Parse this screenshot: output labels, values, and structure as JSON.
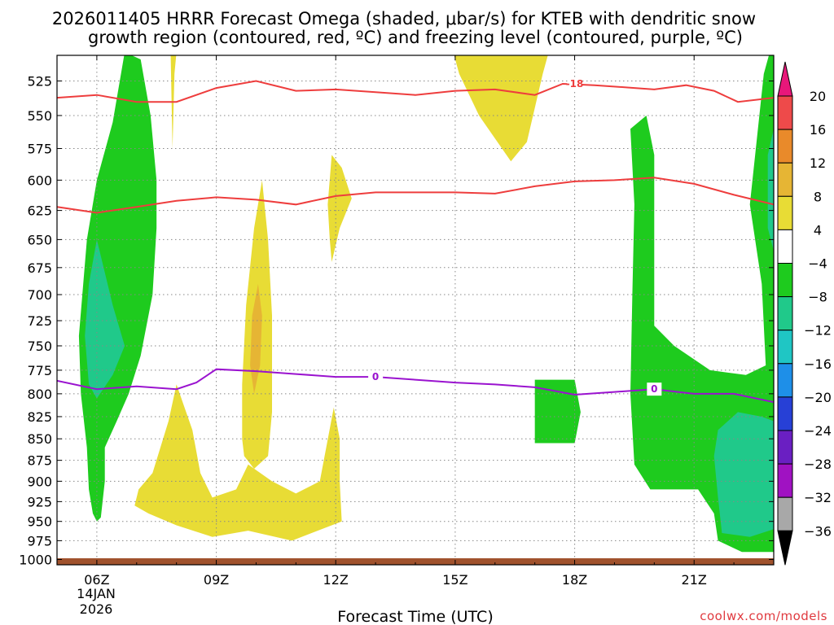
{
  "chart_data": {
    "type": "heatmap",
    "title_line1": "2026011405 HRRR Forecast Omega (shaded, μbar/s) for KTEB with dendritic snow",
    "title_line2": "growth region (contoured, red, ºC) and freezing level (contoured, purple, ºC)",
    "xlabel": "Forecast Time (UTC)",
    "ylabel": "",
    "credit": "coolwx.com/models",
    "x_ticks": [
      {
        "hour": 6,
        "label": "06Z"
      },
      {
        "hour": 9,
        "label": "09Z"
      },
      {
        "hour": 12,
        "label": "12Z"
      },
      {
        "hour": 15,
        "label": "15Z"
      },
      {
        "hour": 18,
        "label": "18Z"
      },
      {
        "hour": 21,
        "label": "21Z"
      }
    ],
    "x_date_lines": [
      "14JAN",
      "2026"
    ],
    "xlim": [
      5,
      23
    ],
    "y_ticks": [
      525,
      550,
      575,
      600,
      625,
      650,
      675,
      700,
      725,
      750,
      775,
      800,
      825,
      850,
      875,
      900,
      925,
      950,
      975,
      1000
    ],
    "y_label_ticks": [
      "525",
      "550",
      "575",
      "600",
      "625",
      "650",
      "675",
      "700",
      "725",
      "750",
      "775",
      "800",
      "825",
      "850",
      "875",
      "900",
      "925",
      "950",
      "975",
      "1000"
    ],
    "ylim": [
      500,
      1005
    ],
    "y_scale": "log-pressure",
    "grid": true,
    "colorbar": {
      "labels": [
        "20",
        "16",
        "12",
        "8",
        "4",
        "−4",
        "−8",
        "−12",
        "−16",
        "−20",
        "−24",
        "−28",
        "−32",
        "−36"
      ],
      "bins": [
        {
          "lo": 20,
          "hi": null,
          "color": "#e8177a"
        },
        {
          "lo": 16,
          "hi": 20,
          "color": "#ee4a4a"
        },
        {
          "lo": 12,
          "hi": 16,
          "color": "#e98a2a"
        },
        {
          "lo": 8,
          "hi": 12,
          "color": "#e6b534"
        },
        {
          "lo": 4,
          "hi": 8,
          "color": "#e8dc35"
        },
        {
          "lo": -4,
          "hi": 4,
          "color": "#ffffff"
        },
        {
          "lo": -8,
          "hi": -4,
          "color": "#1ecb1e"
        },
        {
          "lo": -12,
          "hi": -8,
          "color": "#20c98a"
        },
        {
          "lo": -16,
          "hi": -12,
          "color": "#1fc6c4"
        },
        {
          "lo": -20,
          "hi": -16,
          "color": "#1e8fe8"
        },
        {
          "lo": -24,
          "hi": -20,
          "color": "#2740d6"
        },
        {
          "lo": -28,
          "hi": -24,
          "color": "#6a1fc2"
        },
        {
          "lo": -32,
          "hi": -28,
          "color": "#a012c2"
        },
        {
          "lo": -36,
          "hi": -32,
          "color": "#a8a8a8"
        },
        {
          "lo": null,
          "hi": -36,
          "color": "#000000"
        }
      ]
    },
    "shaded_regions": [
      {
        "value_range": [
          -8,
          -4
        ],
        "color": "#1ecb1e",
        "points": [
          [
            5.9,
            940
          ],
          [
            6.0,
            950
          ],
          [
            6.1,
            945
          ],
          [
            6.2,
            900
          ],
          [
            6.2,
            860
          ],
          [
            6.5,
            830
          ],
          [
            6.8,
            800
          ],
          [
            7.1,
            760
          ],
          [
            7.4,
            700
          ],
          [
            7.5,
            640
          ],
          [
            7.5,
            600
          ],
          [
            7.35,
            550
          ],
          [
            7.1,
            510
          ],
          [
            6.7,
            505
          ],
          [
            6.4,
            555
          ],
          [
            6.0,
            600
          ],
          [
            5.75,
            650
          ],
          [
            5.55,
            740
          ],
          [
            5.6,
            800
          ],
          [
            5.75,
            860
          ],
          [
            5.8,
            910
          ]
        ]
      },
      {
        "value_range": [
          -12,
          -8
        ],
        "color": "#20c98a",
        "points": [
          [
            6.0,
            805
          ],
          [
            6.4,
            780
          ],
          [
            6.7,
            750
          ],
          [
            6.4,
            710
          ],
          [
            6.0,
            650
          ],
          [
            5.8,
            690
          ],
          [
            5.7,
            740
          ],
          [
            5.8,
            790
          ]
        ]
      },
      {
        "value_range": [
          4,
          8
        ],
        "color": "#e8dc35",
        "points": [
          [
            7.9,
            575
          ],
          [
            7.95,
            520
          ],
          [
            8.0,
            505
          ],
          [
            7.95,
            500
          ],
          [
            7.85,
            500
          ]
        ]
      },
      {
        "value_range": [
          4,
          8
        ],
        "color": "#e8dc35",
        "points": [
          [
            9.7,
            870
          ],
          [
            9.95,
            885
          ],
          [
            10.3,
            870
          ],
          [
            10.4,
            820
          ],
          [
            10.4,
            720
          ],
          [
            10.3,
            650
          ],
          [
            10.15,
            600
          ],
          [
            9.95,
            640
          ],
          [
            9.75,
            710
          ],
          [
            9.65,
            790
          ],
          [
            9.65,
            850
          ]
        ]
      },
      {
        "value_range": [
          8,
          12
        ],
        "color": "#e6b534",
        "points": [
          [
            9.95,
            800
          ],
          [
            10.1,
            770
          ],
          [
            10.15,
            720
          ],
          [
            10.05,
            690
          ],
          [
            9.9,
            720
          ],
          [
            9.85,
            770
          ]
        ]
      },
      {
        "value_range": [
          4,
          8
        ],
        "color": "#e8dc35",
        "points": [
          [
            11.9,
            670
          ],
          [
            12.1,
            640
          ],
          [
            12.4,
            615
          ],
          [
            12.15,
            590
          ],
          [
            11.9,
            580
          ],
          [
            11.8,
            620
          ],
          [
            11.85,
            650
          ]
        ]
      },
      {
        "value_range": [
          4,
          8
        ],
        "color": "#e8dc35",
        "points": [
          [
            6.95,
            930
          ],
          [
            7.3,
            940
          ],
          [
            8.0,
            955
          ],
          [
            8.9,
            970
          ],
          [
            9.8,
            962
          ],
          [
            10.9,
            975
          ],
          [
            12.15,
            950
          ],
          [
            12.1,
            900
          ],
          [
            12.1,
            850
          ],
          [
            11.95,
            815
          ],
          [
            11.6,
            900
          ],
          [
            11.0,
            915
          ],
          [
            10.4,
            900
          ],
          [
            9.8,
            880
          ],
          [
            9.5,
            910
          ],
          [
            8.9,
            920
          ],
          [
            8.6,
            890
          ],
          [
            8.4,
            840
          ],
          [
            8.0,
            790
          ],
          [
            7.8,
            830
          ],
          [
            7.4,
            890
          ],
          [
            7.05,
            910
          ]
        ]
      },
      {
        "value_range": [
          4,
          8
        ],
        "color": "#e8dc35",
        "points": [
          [
            14.9,
            500
          ],
          [
            15.1,
            520
          ],
          [
            15.6,
            550
          ],
          [
            16.4,
            585
          ],
          [
            16.8,
            570
          ],
          [
            17.2,
            520
          ],
          [
            17.4,
            500
          ]
        ]
      },
      {
        "value_range": [
          -8,
          -4
        ],
        "color": "#1ecb1e",
        "points": [
          [
            17.0,
            785
          ],
          [
            18.0,
            785
          ],
          [
            18.15,
            820
          ],
          [
            18.0,
            855
          ],
          [
            17.0,
            855
          ]
        ]
      },
      {
        "value_range": [
          -8,
          -4
        ],
        "color": "#1ecb1e",
        "points": [
          [
            19.4,
            560
          ],
          [
            19.8,
            550
          ],
          [
            20.0,
            580
          ],
          [
            20.0,
            660
          ],
          [
            20.0,
            730
          ],
          [
            20.5,
            750
          ],
          [
            21.4,
            775
          ],
          [
            22.3,
            780
          ],
          [
            22.8,
            770
          ],
          [
            22.7,
            690
          ],
          [
            22.4,
            620
          ],
          [
            22.75,
            520
          ],
          [
            22.95,
            500
          ],
          [
            23.0,
            500
          ],
          [
            23.0,
            990
          ],
          [
            22.2,
            990
          ],
          [
            21.6,
            975
          ],
          [
            21.5,
            940
          ],
          [
            21.1,
            910
          ],
          [
            19.9,
            910
          ],
          [
            19.5,
            880
          ],
          [
            19.4,
            800
          ],
          [
            19.45,
            700
          ],
          [
            19.5,
            620
          ]
        ]
      },
      {
        "value_range": [
          -12,
          -8
        ],
        "color": "#20c98a",
        "points": [
          [
            21.5,
            870
          ],
          [
            21.6,
            840
          ],
          [
            22.1,
            820
          ],
          [
            22.7,
            825
          ],
          [
            23.0,
            830
          ],
          [
            23.0,
            960
          ],
          [
            22.4,
            970
          ],
          [
            21.7,
            965
          ],
          [
            21.6,
            920
          ]
        ]
      },
      {
        "value_range": [
          -12,
          -8
        ],
        "color": "#20c98a",
        "points": [
          [
            22.85,
            580
          ],
          [
            23.0,
            560
          ],
          [
            23.0,
            660
          ],
          [
            22.85,
            640
          ]
        ]
      }
    ],
    "contours": [
      {
        "name": "dgz-top",
        "type": "temperature",
        "color": "#ee3d3d",
        "label": "-18",
        "label_hour": 18.0,
        "points": [
          [
            5.0,
            537
          ],
          [
            6.0,
            535
          ],
          [
            7.0,
            540
          ],
          [
            8.0,
            540
          ],
          [
            9.0,
            530
          ],
          [
            10.0,
            525
          ],
          [
            11.0,
            532
          ],
          [
            12.0,
            531
          ],
          [
            13.0,
            533
          ],
          [
            14.0,
            535
          ],
          [
            15.0,
            532
          ],
          [
            16.0,
            531
          ],
          [
            17.0,
            535
          ],
          [
            17.7,
            527
          ],
          [
            18.5,
            528
          ],
          [
            19.5,
            530
          ],
          [
            20.0,
            531
          ],
          [
            20.8,
            528
          ],
          [
            21.5,
            532
          ],
          [
            22.1,
            540
          ],
          [
            23.0,
            537
          ]
        ]
      },
      {
        "name": "dgz-bottom",
        "type": "temperature",
        "color": "#ee3d3d",
        "label": "",
        "points": [
          [
            5.0,
            622
          ],
          [
            6.0,
            627
          ],
          [
            7.0,
            622
          ],
          [
            8.0,
            617
          ],
          [
            9.0,
            614
          ],
          [
            10.0,
            616
          ],
          [
            11.0,
            620
          ],
          [
            12.0,
            613
          ],
          [
            13.0,
            610
          ],
          [
            14.0,
            610
          ],
          [
            15.0,
            610
          ],
          [
            16.0,
            611
          ],
          [
            17.0,
            605
          ],
          [
            18.0,
            601
          ],
          [
            19.0,
            600
          ],
          [
            20.0,
            598
          ],
          [
            21.0,
            603
          ],
          [
            22.0,
            612
          ],
          [
            23.0,
            620
          ]
        ]
      },
      {
        "name": "freezing-level",
        "type": "temperature",
        "color": "#9a13cf",
        "label": "0",
        "label_hour": 13.0,
        "label2": "0",
        "label2_hour": 20.0,
        "points": [
          [
            5.0,
            786
          ],
          [
            6.0,
            795
          ],
          [
            7.0,
            792
          ],
          [
            8.0,
            795
          ],
          [
            8.5,
            788
          ],
          [
            9.0,
            774
          ],
          [
            10.0,
            776
          ],
          [
            11.0,
            779
          ],
          [
            12.0,
            782
          ],
          [
            13.0,
            782
          ],
          [
            14.0,
            785
          ],
          [
            15.0,
            788
          ],
          [
            16.0,
            790
          ],
          [
            17.0,
            793
          ],
          [
            17.5,
            797
          ],
          [
            18.0,
            801
          ],
          [
            19.0,
            798
          ],
          [
            20.0,
            795
          ],
          [
            21.0,
            800
          ],
          [
            22.0,
            800
          ],
          [
            23.0,
            809
          ]
        ]
      }
    ],
    "terrain_color": "#a0522d"
  }
}
